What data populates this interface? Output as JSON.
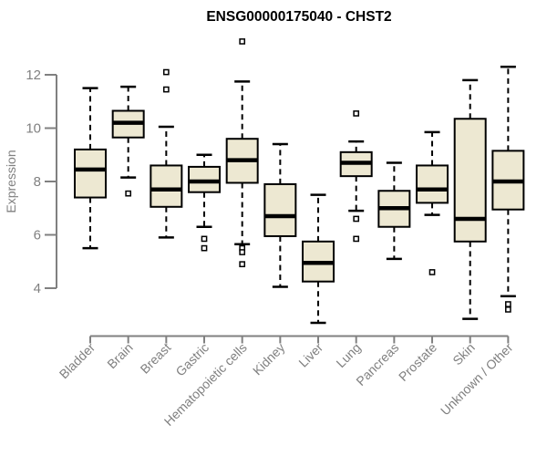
{
  "chart_data": {
    "type": "boxplot",
    "title": "ENSG00000175040 - CHST2",
    "ylabel": "Expression",
    "xlabel": "",
    "ylim": [
      4,
      12
    ],
    "yticks": [
      4,
      6,
      8,
      10,
      12
    ],
    "grid": false,
    "legend": null,
    "categories": [
      "Bladder",
      "Brain",
      "Breast",
      "Gastric",
      "Hematopoietic cells",
      "Kidney",
      "Liver",
      "Lung",
      "Pancreas",
      "Prostate",
      "Skin",
      "Unknown / Other"
    ],
    "series": [
      {
        "category": "Bladder",
        "whisker_low": 5.5,
        "q1": 7.4,
        "median": 8.45,
        "q3": 9.2,
        "whisker_high": 11.5,
        "outliers": []
      },
      {
        "category": "Brain",
        "whisker_low": 8.15,
        "q1": 9.65,
        "median": 10.2,
        "q3": 10.65,
        "whisker_high": 11.55,
        "outliers": [
          7.55
        ]
      },
      {
        "category": "Breast",
        "whisker_low": 5.9,
        "q1": 7.05,
        "median": 7.7,
        "q3": 8.6,
        "whisker_high": 10.05,
        "outliers": [
          12.1,
          11.45
        ]
      },
      {
        "category": "Gastric",
        "whisker_low": 6.3,
        "q1": 7.6,
        "median": 8.0,
        "q3": 8.55,
        "whisker_high": 9.0,
        "outliers": [
          5.85,
          5.5
        ]
      },
      {
        "category": "Hematopoietic cells",
        "whisker_low": 5.65,
        "q1": 7.95,
        "median": 8.8,
        "q3": 9.6,
        "whisker_high": 11.75,
        "outliers": [
          13.25,
          5.5,
          5.35,
          4.9
        ]
      },
      {
        "category": "Kidney",
        "whisker_low": 4.05,
        "q1": 5.95,
        "median": 6.7,
        "q3": 7.9,
        "whisker_high": 9.4,
        "outliers": []
      },
      {
        "category": "Liver",
        "whisker_low": 2.7,
        "q1": 4.25,
        "median": 4.95,
        "q3": 5.75,
        "whisker_high": 7.5,
        "outliers": []
      },
      {
        "category": "Lung",
        "whisker_low": 6.9,
        "q1": 8.2,
        "median": 8.7,
        "q3": 9.1,
        "whisker_high": 9.5,
        "outliers": [
          10.55,
          6.6,
          5.85
        ]
      },
      {
        "category": "Pancreas",
        "whisker_low": 5.1,
        "q1": 6.3,
        "median": 7.0,
        "q3": 7.65,
        "whisker_high": 8.7,
        "outliers": []
      },
      {
        "category": "Prostate",
        "whisker_low": 6.75,
        "q1": 7.2,
        "median": 7.7,
        "q3": 8.6,
        "whisker_high": 9.85,
        "outliers": [
          4.6
        ]
      },
      {
        "category": "Skin",
        "whisker_low": 2.85,
        "q1": 5.75,
        "median": 6.6,
        "q3": 10.35,
        "whisker_high": 11.8,
        "outliers": []
      },
      {
        "category": "Unknown / Other",
        "whisker_low": 3.7,
        "q1": 6.95,
        "median": 8.0,
        "q3": 9.15,
        "whisker_high": 12.3,
        "outliers": [
          3.4,
          3.2
        ]
      }
    ]
  },
  "colors": {
    "background": "#FFFFFF",
    "box_fill": "#EDE8D2",
    "box_border": "#000000",
    "median": "#000000",
    "whisker": "#000000",
    "outlier_stroke": "#000000",
    "outlier_fill": "#FFFFFF",
    "axis": "#808080",
    "tick_label": "#808080",
    "title": "#000000"
  }
}
